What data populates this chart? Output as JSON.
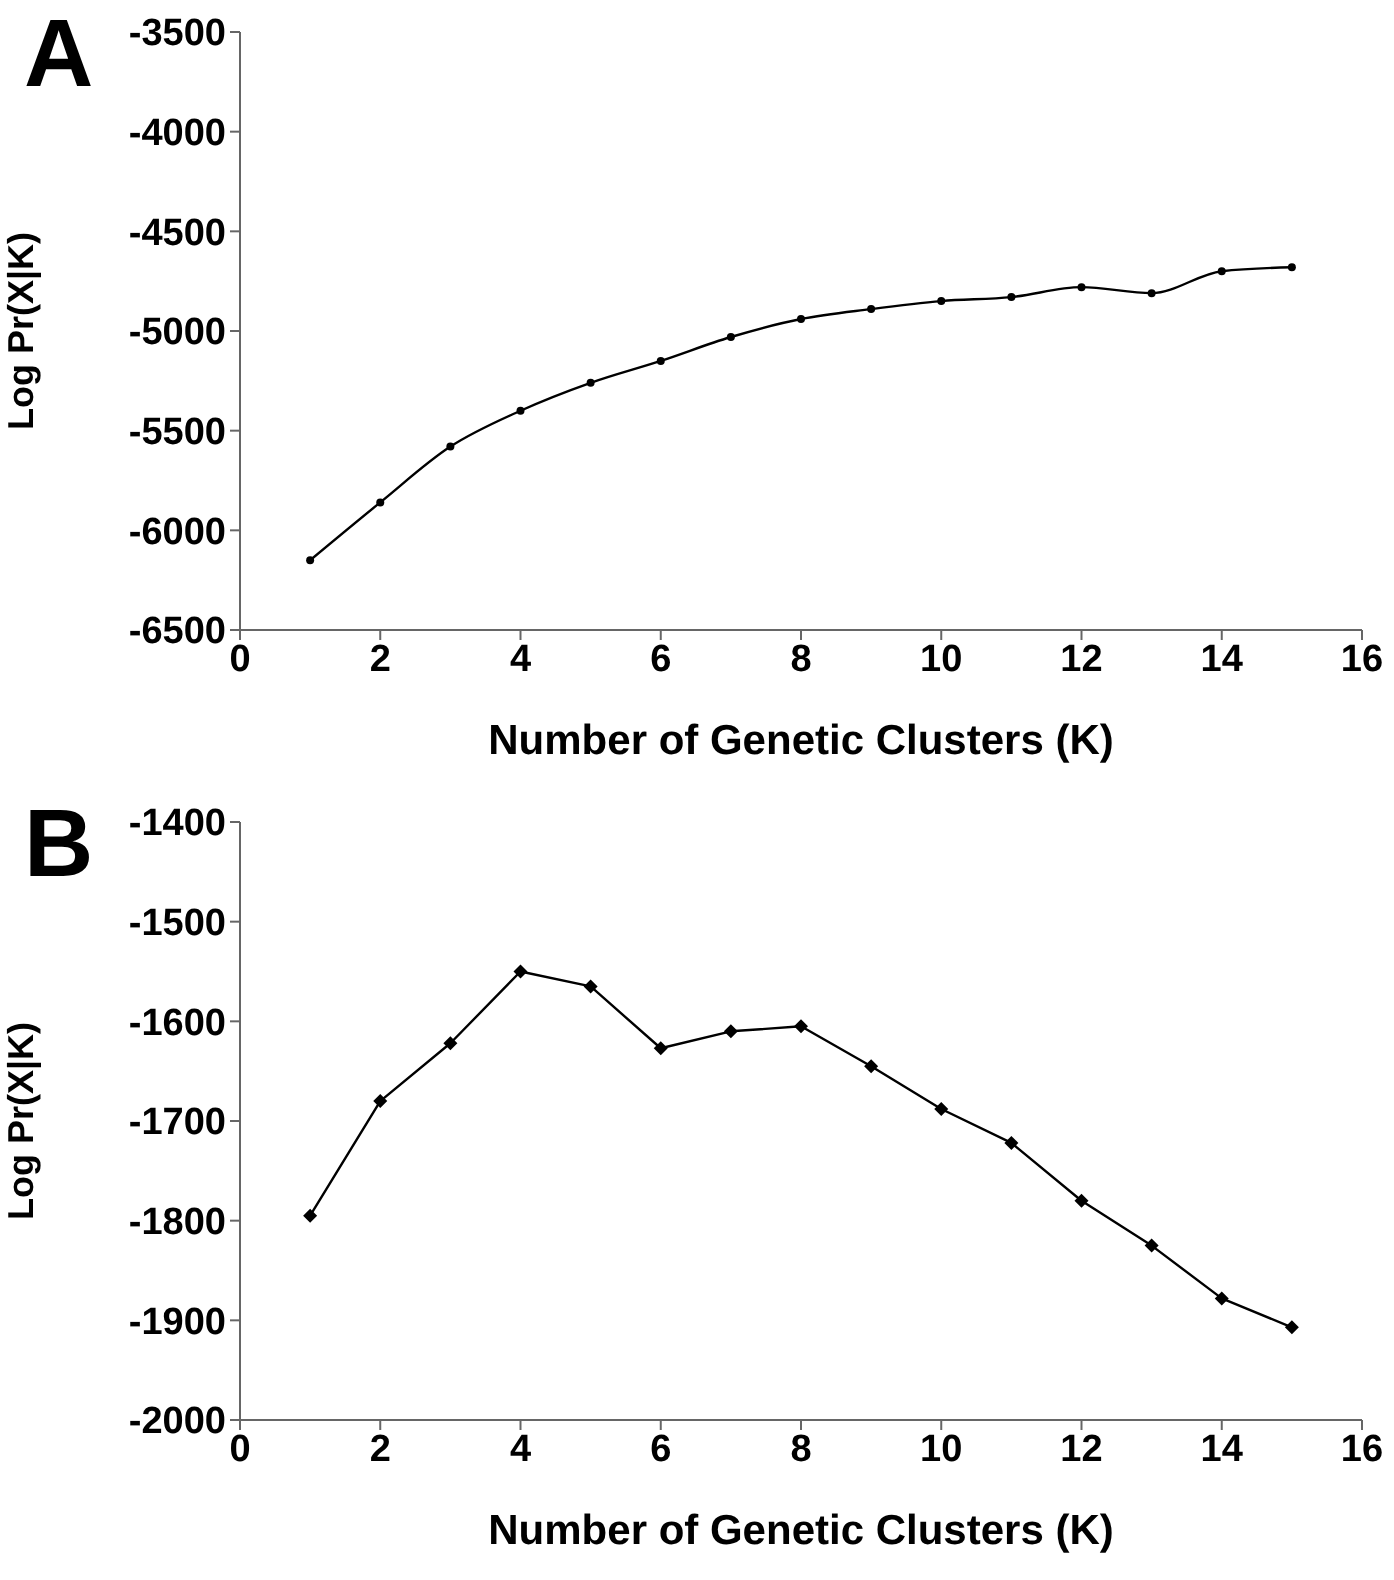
{
  "chart_data": [
    {
      "type": "line",
      "title": "A",
      "xlabel": "Number of Genetic Clusters (K)",
      "ylabel": "Log Pr(X|K)",
      "x": [
        1,
        2,
        3,
        4,
        5,
        6,
        7,
        8,
        9,
        10,
        11,
        12,
        13,
        14,
        15
      ],
      "xlim": [
        0,
        16
      ],
      "xticks": [
        0,
        2,
        4,
        6,
        8,
        10,
        12,
        14,
        16
      ],
      "ylim": [
        -6500,
        -3500
      ],
      "yticks": [
        -6500,
        -6000,
        -5500,
        -5000,
        -4500,
        -4000,
        -3500
      ],
      "marker": "circle",
      "grid": false,
      "legend": false,
      "series": [
        {
          "color": "#000000",
          "values": [
            -6150,
            -5860,
            -5580,
            -5400,
            -5260,
            -5150,
            -5030,
            -4940,
            -4890,
            -4850,
            -4830,
            -4780,
            -4810,
            -4700,
            -4680
          ]
        }
      ]
    },
    {
      "type": "line",
      "title": "B",
      "xlabel": "Number of Genetic Clusters (K)",
      "ylabel": "Log Pr(X|K)",
      "x": [
        1,
        2,
        3,
        4,
        5,
        6,
        7,
        8,
        9,
        10,
        11,
        12,
        13,
        14,
        15
      ],
      "xlim": [
        0,
        16
      ],
      "xticks": [
        0,
        2,
        4,
        6,
        8,
        10,
        12,
        14,
        16
      ],
      "ylim": [
        -2000,
        -1400
      ],
      "yticks": [
        -2000,
        -1900,
        -1800,
        -1700,
        -1600,
        -1500,
        -1400
      ],
      "marker": "diamond",
      "grid": false,
      "legend": false,
      "series": [
        {
          "color": "#000000",
          "values": [
            -1795,
            -1680,
            -1622,
            -1550,
            -1565,
            -1627,
            -1610,
            -1605,
            -1645,
            -1688,
            -1722,
            -1780,
            -1825,
            -1878,
            -1907
          ]
        }
      ]
    }
  ]
}
